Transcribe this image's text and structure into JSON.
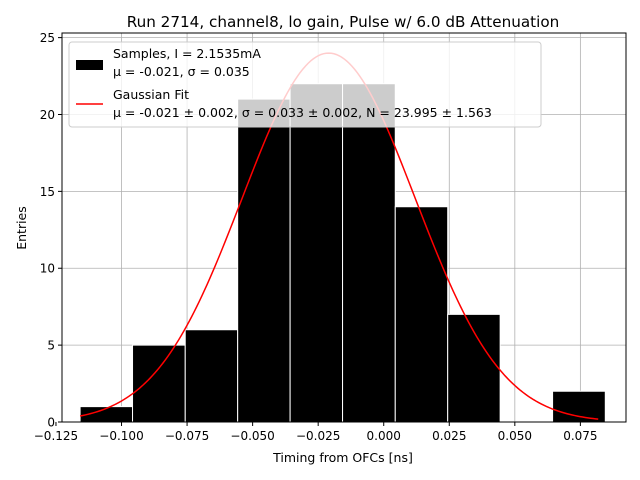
{
  "chart_data": {
    "type": "bar",
    "title": "Run 2714, channel8, lo gain, Pulse w/ 6.0 dB Attenuation",
    "xlabel": "Timing from OFCs [ns]",
    "ylabel": "Entries",
    "xlim": [
      -0.1227,
      0.0924
    ],
    "ylim": [
      0,
      25.3
    ],
    "grid": true,
    "legend_position": "upper-left",
    "x_ticks": [
      -0.125,
      -0.1,
      -0.075,
      -0.05,
      -0.025,
      0.0,
      0.025,
      0.05,
      0.075
    ],
    "x_tick_labels": [
      "−0.125",
      "−0.100",
      "−0.075",
      "−0.050",
      "−0.025",
      "0.000",
      "0.025",
      "0.050",
      "0.075"
    ],
    "y_ticks": [
      0,
      5,
      10,
      15,
      20,
      25
    ],
    "y_tick_labels": [
      "0",
      "5",
      "10",
      "15",
      "20",
      "25"
    ],
    "histogram": {
      "bin_edges": [
        -0.1158,
        -0.0958,
        -0.0757,
        -0.0557,
        -0.0357,
        -0.0157,
        0.0044,
        0.0244,
        0.0444,
        0.0644,
        0.0845
      ],
      "counts": [
        1,
        5,
        6,
        21,
        22,
        22,
        14,
        7,
        0,
        2
      ],
      "color": "#000000",
      "edgecolor": "#ffffff"
    },
    "fit": {
      "type": "gaussian",
      "mu": -0.021,
      "sigma": 0.033,
      "N": 23.995,
      "x_range": [
        -0.1158,
        0.0818
      ],
      "color": "#ff0000"
    },
    "legend": [
      {
        "label_line1": "Samples, I = 2.1535mA",
        "label_line2": "μ = -0.021, σ = 0.035",
        "kind": "patch",
        "color": "#000000"
      },
      {
        "label_line1": "Gaussian Fit",
        "label_line2": "μ = -0.021 ± 0.002, σ = 0.033 ± 0.002, N = 23.995 ± 1.563",
        "kind": "line",
        "color": "#ff0000"
      }
    ]
  }
}
